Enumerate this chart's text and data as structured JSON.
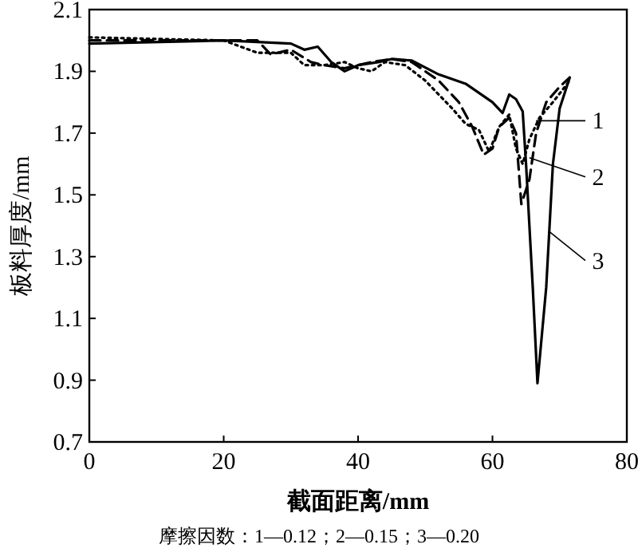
{
  "chart_data": {
    "type": "line",
    "xlabel": "截面距离/mm",
    "ylabel": "板料厚度/mm",
    "xlim": [
      0,
      80
    ],
    "ylim": [
      0.7,
      2.1
    ],
    "xticks": [
      0,
      20,
      40,
      60,
      80
    ],
    "yticks": [
      0.7,
      0.9,
      1.1,
      1.3,
      1.5,
      1.7,
      1.9,
      2.1
    ],
    "marker": "none",
    "series": [
      {
        "color": "#000000",
        "line_style": "dotted",
        "x": [
          0,
          20,
          25,
          27,
          30,
          32,
          35,
          38,
          40,
          42,
          44,
          47,
          50,
          54,
          56,
          58,
          59.5,
          61,
          62.5,
          63.5,
          64.5,
          65.5,
          67,
          69,
          71.5
        ],
        "values": [
          2.01,
          2.0,
          1.96,
          1.96,
          1.96,
          1.92,
          1.92,
          1.93,
          1.91,
          1.9,
          1.93,
          1.92,
          1.87,
          1.78,
          1.73,
          1.71,
          1.64,
          1.72,
          1.76,
          1.65,
          1.6,
          1.68,
          1.75,
          1.8,
          1.87
        ]
      },
      {
        "color": "#000000",
        "line_style": "dashed",
        "x": [
          0,
          20,
          25,
          27,
          30,
          33,
          35,
          38,
          40,
          42,
          45,
          48,
          52,
          55,
          57,
          58.7,
          60,
          61,
          62.5,
          63.5,
          64.3,
          65.5,
          66.5,
          68,
          70,
          71.5
        ],
        "values": [
          2.0,
          2.0,
          2.0,
          1.955,
          1.97,
          1.93,
          1.92,
          1.91,
          1.92,
          1.93,
          1.94,
          1.93,
          1.87,
          1.8,
          1.72,
          1.63,
          1.65,
          1.72,
          1.75,
          1.7,
          1.47,
          1.55,
          1.7,
          1.8,
          1.85,
          1.88
        ]
      },
      {
        "color": "#000000",
        "line_style": "solid",
        "x": [
          0,
          20,
          30,
          32,
          34,
          36,
          38,
          40,
          43,
          45,
          48,
          52,
          56,
          60,
          61.5,
          62.5,
          63.5,
          64.5,
          65,
          66,
          66.7,
          68,
          69,
          70,
          71.5
        ],
        "values": [
          1.99,
          2.0,
          1.99,
          1.97,
          1.98,
          1.93,
          1.9,
          1.92,
          1.93,
          1.94,
          1.935,
          1.89,
          1.86,
          1.8,
          1.765,
          1.825,
          1.81,
          1.77,
          1.6,
          1.2,
          0.89,
          1.2,
          1.6,
          1.78,
          1.88
        ]
      }
    ],
    "annotations": [
      {
        "text": "1",
        "x": 66.5,
        "y": 1.74
      },
      {
        "text": "2",
        "x": 65.5,
        "y": 1.62
      },
      {
        "text": "3",
        "x": 68.5,
        "y": 1.38
      },
      "摩擦因数：1—0.12；2—0.15；3—0.20"
    ]
  }
}
